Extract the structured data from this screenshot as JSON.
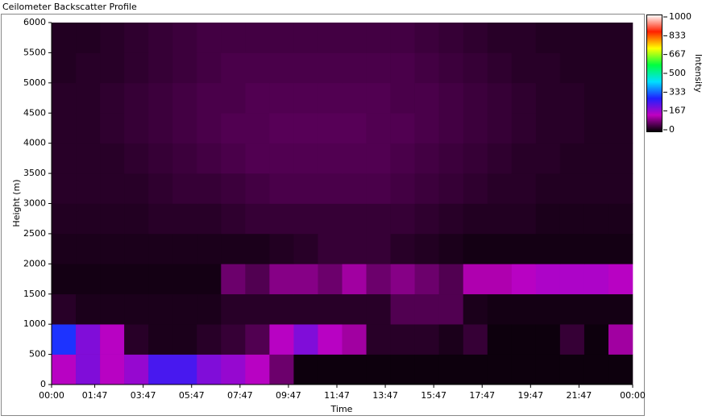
{
  "chart_data": {
    "type": "heatmap",
    "title": "Ceilometer Backscatter Profile",
    "xlabel": "Time",
    "ylabel": "Height (m)",
    "colorbar_label": "Intensity",
    "xlim": [
      0,
      24
    ],
    "xticks": [
      {
        "value": 0,
        "label": "00:00"
      },
      {
        "value": 1.7833,
        "label": "01:47"
      },
      {
        "value": 3.7833,
        "label": "03:47"
      },
      {
        "value": 5.7833,
        "label": "05:47"
      },
      {
        "value": 7.7833,
        "label": "07:47"
      },
      {
        "value": 9.7833,
        "label": "09:47"
      },
      {
        "value": 11.7833,
        "label": "11:47"
      },
      {
        "value": 13.7833,
        "label": "13:47"
      },
      {
        "value": 15.7833,
        "label": "15:47"
      },
      {
        "value": 17.7833,
        "label": "17:47"
      },
      {
        "value": 19.7833,
        "label": "19:47"
      },
      {
        "value": 21.7833,
        "label": "21:47"
      },
      {
        "value": 24,
        "label": "00:00"
      }
    ],
    "ylim": [
      0,
      6000
    ],
    "yticks": [
      0,
      500,
      1000,
      1500,
      2000,
      2500,
      3000,
      3500,
      4000,
      4500,
      5000,
      5500,
      6000
    ],
    "xbins": [
      0,
      1,
      2,
      3,
      4,
      5,
      6,
      7,
      8,
      9,
      10,
      11,
      12,
      13,
      14,
      15,
      16,
      17,
      18,
      19,
      20,
      21,
      22,
      23,
      24
    ],
    "ybins": [
      0,
      500,
      1000,
      1500,
      2000,
      2500,
      3000,
      3500,
      4000,
      4500,
      5000,
      5500,
      6000
    ],
    "values": [
      [
        150,
        200,
        150,
        180,
        250,
        250,
        200,
        180,
        150,
        80,
        10,
        10,
        10,
        10,
        10,
        10,
        10,
        10,
        10,
        10,
        10,
        10,
        10,
        10
      ],
      [
        300,
        200,
        150,
        30,
        20,
        20,
        30,
        40,
        60,
        150,
        200,
        150,
        120,
        30,
        30,
        30,
        20,
        40,
        10,
        10,
        10,
        40,
        10,
        120
      ],
      [
        30,
        20,
        20,
        20,
        20,
        20,
        20,
        30,
        30,
        30,
        30,
        30,
        30,
        30,
        60,
        60,
        60,
        20,
        15,
        15,
        15,
        15,
        15,
        15
      ],
      [
        15,
        15,
        15,
        15,
        15,
        15,
        15,
        80,
        60,
        100,
        100,
        80,
        120,
        80,
        100,
        80,
        60,
        130,
        130,
        150,
        160,
        160,
        160,
        150
      ],
      [
        20,
        20,
        20,
        20,
        20,
        20,
        20,
        20,
        20,
        25,
        30,
        40,
        40,
        40,
        30,
        25,
        20,
        15,
        15,
        15,
        15,
        15,
        15,
        15
      ],
      [
        25,
        25,
        25,
        25,
        30,
        30,
        30,
        35,
        40,
        40,
        40,
        40,
        40,
        40,
        40,
        35,
        30,
        25,
        25,
        25,
        20,
        20,
        20,
        20
      ],
      [
        30,
        30,
        30,
        30,
        35,
        40,
        40,
        45,
        50,
        55,
        55,
        55,
        55,
        55,
        50,
        45,
        40,
        35,
        30,
        30,
        25,
        25,
        25,
        25
      ],
      [
        30,
        30,
        30,
        35,
        40,
        45,
        50,
        55,
        60,
        60,
        60,
        60,
        60,
        60,
        55,
        50,
        45,
        40,
        35,
        30,
        30,
        25,
        25,
        25
      ],
      [
        30,
        30,
        35,
        40,
        45,
        50,
        55,
        60,
        60,
        65,
        65,
        65,
        65,
        60,
        60,
        55,
        50,
        45,
        40,
        35,
        30,
        30,
        25,
        25
      ],
      [
        30,
        30,
        35,
        40,
        45,
        50,
        55,
        55,
        60,
        60,
        60,
        60,
        60,
        60,
        55,
        55,
        50,
        45,
        40,
        35,
        30,
        30,
        25,
        25
      ],
      [
        25,
        30,
        30,
        35,
        40,
        45,
        50,
        55,
        55,
        55,
        55,
        55,
        55,
        55,
        55,
        50,
        45,
        40,
        35,
        30,
        30,
        25,
        25,
        25
      ],
      [
        25,
        25,
        30,
        35,
        40,
        45,
        50,
        50,
        50,
        50,
        50,
        50,
        50,
        50,
        50,
        45,
        40,
        35,
        30,
        30,
        25,
        25,
        25,
        25
      ]
    ],
    "clim": [
      0,
      1000
    ],
    "cticks": [
      0,
      167,
      333,
      500,
      667,
      833,
      1000
    ],
    "colormap": [
      "#000000",
      "#c000c0",
      "#2020ff",
      "#00e0ff",
      "#00ff40",
      "#ffff00",
      "#ff2000",
      "#ffffff"
    ],
    "grid": false
  }
}
